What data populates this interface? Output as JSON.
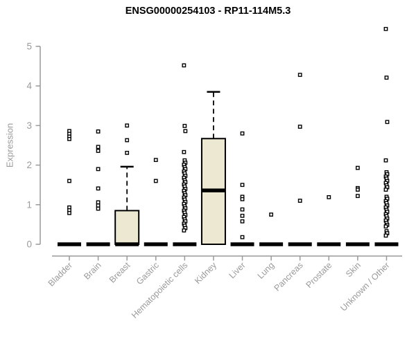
{
  "title": "ENSG00000254103 - RP11-114M5.3",
  "y_axis": {
    "label": "Expression",
    "ticks": [
      0,
      1,
      2,
      3,
      4,
      5
    ]
  },
  "colors": {
    "box_fill": "#ede8d1",
    "marker_stroke": "#000000",
    "marker_fill": "#ffffff",
    "axis": "#999999",
    "tick_label": "#9a9a9a",
    "title": "#000000",
    "median": "#000000"
  },
  "chart_data": {
    "type": "boxplot",
    "title": "ENSG00000254103 - RP11-114M5.3",
    "xlabel": "",
    "ylabel": "Expression",
    "ylim": [
      0,
      5.6
    ],
    "y_ticks": [
      0,
      1,
      2,
      3,
      4,
      5
    ],
    "grid": false,
    "legend": null,
    "categories": [
      "Bladder",
      "Brain",
      "Breast",
      "Gastric",
      "Hematopoietic cells",
      "Kidney",
      "Liver",
      "Lung",
      "Pancreas",
      "Prostate",
      "Skin",
      "Unknown / Other"
    ],
    "series": [
      {
        "name": "Bladder",
        "median": 0,
        "points": [
          2.86,
          2.79,
          2.72,
          2.66,
          1.6,
          0.93,
          0.86,
          0.79
        ]
      },
      {
        "name": "Brain",
        "median": 0,
        "points": [
          2.85,
          2.46,
          2.36,
          1.9,
          1.41,
          1.06,
          0.98,
          0.9
        ]
      },
      {
        "name": "Breast",
        "median": 0,
        "box": {
          "q1": 0,
          "median": 0,
          "q3": 0.85,
          "whisker_high": 1.96
        },
        "points": [
          3.0,
          2.63,
          2.31
        ]
      },
      {
        "name": "Gastric",
        "median": 0,
        "points": [
          2.13,
          1.6
        ]
      },
      {
        "name": "Hematopoietic cells",
        "median": 0,
        "points": [
          4.52,
          2.99,
          2.86,
          2.33,
          2.12,
          2.06,
          2.01,
          1.95,
          1.9,
          1.84,
          1.79,
          1.73,
          1.68,
          1.62,
          1.57,
          1.51,
          1.46,
          1.4,
          1.35,
          1.29,
          1.24,
          1.18,
          1.13,
          1.07,
          1.02,
          0.96,
          0.91,
          0.85,
          0.8,
          0.74,
          0.69,
          0.63,
          0.58,
          0.52,
          0.47,
          0.41,
          0.35
        ]
      },
      {
        "name": "Kidney",
        "median": 1.36,
        "box": {
          "q1": 0,
          "median": 1.36,
          "q3": 2.67,
          "whisker_high": 3.85
        },
        "points": []
      },
      {
        "name": "Liver",
        "median": 0,
        "points": [
          2.8,
          1.5,
          1.2,
          1.14,
          0.88,
          0.72,
          0.58,
          0.18
        ]
      },
      {
        "name": "Lung",
        "median": 0,
        "points": [
          0.75
        ]
      },
      {
        "name": "Pancreas",
        "median": 0,
        "points": [
          4.28,
          2.97,
          1.1
        ]
      },
      {
        "name": "Prostate",
        "median": 0,
        "points": [
          1.19
        ]
      },
      {
        "name": "Skin",
        "median": 0,
        "points": [
          1.93,
          1.42,
          1.38,
          1.22
        ]
      },
      {
        "name": "Unknown / Other",
        "median": 0,
        "points": [
          5.44,
          4.21,
          3.09,
          2.12,
          1.82,
          1.77,
          1.71,
          1.66,
          1.6,
          1.55,
          1.49,
          1.44,
          1.38,
          1.2,
          1.15,
          1.09,
          1.04,
          0.98,
          0.93,
          0.87,
          0.82,
          0.76,
          0.71,
          0.65,
          0.6,
          0.54,
          0.49,
          0.45,
          0.33,
          0.28,
          0.22
        ]
      }
    ]
  }
}
